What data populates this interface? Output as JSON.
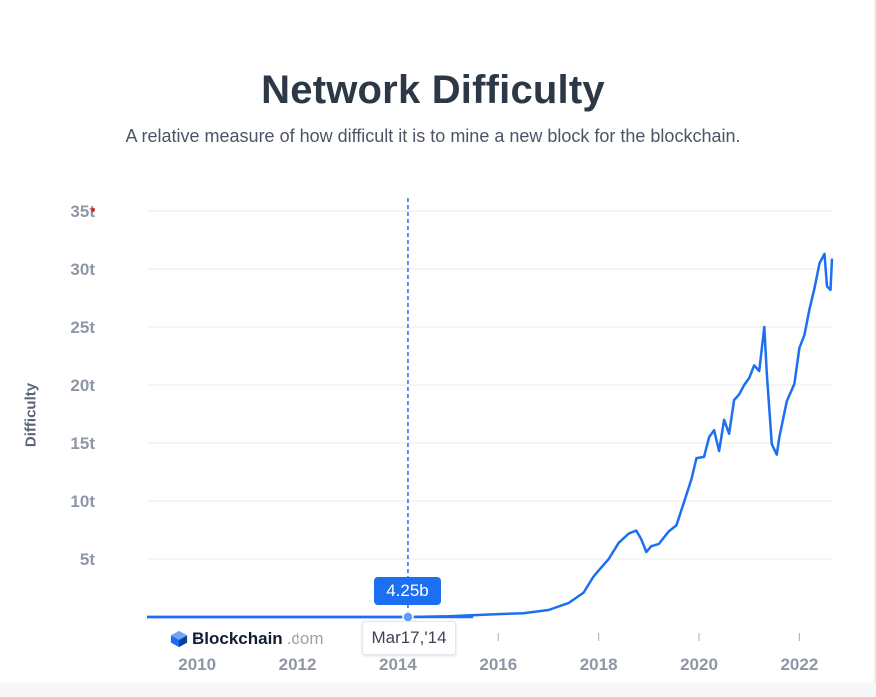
{
  "chart_data": {
    "type": "line",
    "title": "Network Difficulty",
    "subtitle": "A relative measure of how difficult it is to mine a new block for the blockchain.",
    "ylabel": "Difficulty",
    "xlabel": "",
    "x_range": [
      2009.0,
      2022.65
    ],
    "ylim": [
      0,
      35
    ],
    "y_unit": "trillion",
    "x_ticks": [
      "2010",
      "2012",
      "2014",
      "2016",
      "2018",
      "2020",
      "2022"
    ],
    "y_ticks": [
      "5t",
      "10t",
      "15t",
      "20t",
      "25t",
      "30t",
      "35t"
    ],
    "grid": "horizontal",
    "series": [
      {
        "color": "#1d6ff2",
        "x": [
          2009.0,
          2013.0,
          2014.2,
          2015.0,
          2016.0,
          2016.5,
          2017.0,
          2017.4,
          2017.7,
          2017.9,
          2018.0,
          2018.2,
          2018.4,
          2018.6,
          2018.75,
          2018.85,
          2018.95,
          2019.05,
          2019.2,
          2019.4,
          2019.55,
          2019.7,
          2019.85,
          2019.95,
          2020.1,
          2020.2,
          2020.3,
          2020.4,
          2020.5,
          2020.6,
          2020.7,
          2020.8,
          2020.9,
          2021.0,
          2021.1,
          2021.2,
          2021.3,
          2021.35,
          2021.45,
          2021.55,
          2021.6,
          2021.75,
          2021.9,
          2022.0,
          2022.1,
          2022.2,
          2022.3,
          2022.4,
          2022.5,
          2022.55,
          2022.62,
          2022.65
        ],
        "y": [
          0,
          0,
          0.004,
          0.06,
          0.25,
          0.33,
          0.6,
          1.2,
          2.1,
          3.5,
          4.0,
          5.0,
          6.4,
          7.2,
          7.45,
          6.7,
          5.6,
          6.1,
          6.3,
          7.4,
          7.9,
          9.9,
          11.9,
          13.7,
          13.8,
          15.5,
          16.1,
          14.3,
          17.0,
          15.8,
          18.7,
          19.2,
          20.0,
          20.6,
          21.7,
          21.2,
          25.0,
          21.0,
          14.9,
          14.0,
          15.5,
          18.6,
          20.1,
          23.2,
          24.3,
          26.5,
          28.3,
          30.5,
          31.3,
          28.5,
          28.2,
          30.9
        ]
      }
    ],
    "tooltip": {
      "value": "4.25b",
      "date": "Mar17,'14",
      "x": 2014.2,
      "y": 0.00425
    }
  },
  "brand": {
    "name": "Blockchain",
    "suffix": ".com",
    "logo_icon": "blockchain-cube-icon"
  },
  "colors": {
    "line": "#1d6ff2",
    "title": "#2d3847",
    "tick": "#8f97a5",
    "grid": "#e9ebef"
  }
}
